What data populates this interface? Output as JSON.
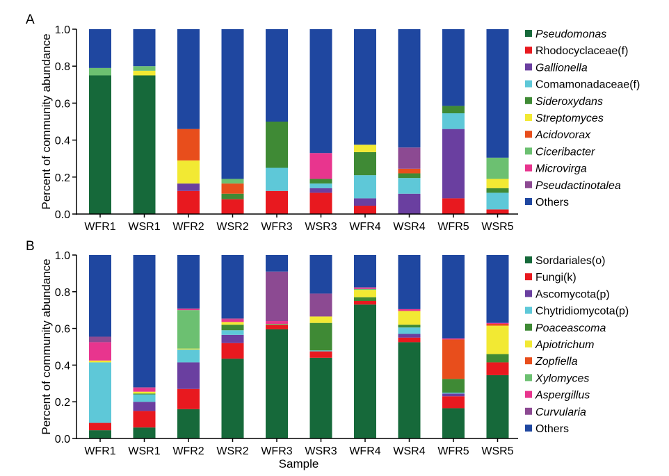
{
  "chart_data": [
    {
      "panel": "A",
      "type": "bar",
      "stacked": true,
      "ylabel": "Percent of community abundance",
      "xlabel": "",
      "ylim": [
        0,
        1.0
      ],
      "yticks": [
        "0.0",
        "0.2",
        "0.4",
        "0.6",
        "0.8",
        "1.0"
      ],
      "categories": [
        "WFR1",
        "WSR1",
        "WFR2",
        "WSR2",
        "WFR3",
        "WSR3",
        "WFR4",
        "WSR4",
        "WFR5",
        "WSR5"
      ],
      "legend_position": "right",
      "series": [
        {
          "name": "Pseudomonas",
          "italic": true,
          "color": "#16693a",
          "values": [
            0.75,
            0.75,
            0,
            0,
            0,
            0,
            0,
            0,
            0,
            0
          ]
        },
        {
          "name": "Rhodocyclaceae(f)",
          "italic": false,
          "color": "#e8191f",
          "values": [
            0,
            0,
            0.125,
            0.08,
            0.125,
            0.115,
            0.045,
            0,
            0.085,
            0.025
          ]
        },
        {
          "name": "Gallionella",
          "italic": true,
          "color": "#6a3fa0",
          "values": [
            0,
            0,
            0.04,
            0,
            0,
            0.025,
            0.04,
            0.11,
            0.375,
            0
          ]
        },
        {
          "name": "Comamonadaceae(f)",
          "italic": false,
          "color": "#5ec8d8",
          "values": [
            0,
            0,
            0,
            0,
            0.125,
            0.025,
            0.125,
            0.085,
            0.085,
            0.09
          ]
        },
        {
          "name": "Sideroxydans",
          "italic": true,
          "color": "#3f8a35",
          "values": [
            0,
            0,
            0,
            0.03,
            0.25,
            0.025,
            0.125,
            0.025,
            0.04,
            0.025
          ]
        },
        {
          "name": "Streptomyces",
          "italic": true,
          "color": "#f2e933",
          "values": [
            0,
            0.025,
            0.125,
            0,
            0,
            0,
            0.04,
            0,
            0,
            0.05
          ]
        },
        {
          "name": "Acidovorax",
          "italic": true,
          "color": "#e84e1c",
          "values": [
            0,
            0,
            0.17,
            0.055,
            0,
            0,
            0,
            0.025,
            0,
            0
          ]
        },
        {
          "name": "Ciceribacter",
          "italic": true,
          "color": "#6cc071",
          "values": [
            0.04,
            0.025,
            0,
            0.025,
            0,
            0,
            0,
            0,
            0,
            0.115
          ]
        },
        {
          "name": "Microvirga",
          "italic": true,
          "color": "#e8358e",
          "values": [
            0,
            0,
            0,
            0,
            0,
            0.14,
            0,
            0,
            0,
            0
          ]
        },
        {
          "name": "Pseudactinotalea",
          "italic": true,
          "color": "#8c4a92",
          "values": [
            0,
            0,
            0,
            0,
            0,
            0,
            0,
            0.115,
            0,
            0
          ]
        },
        {
          "name": "Others",
          "italic": false,
          "color": "#1f47a0",
          "values": [
            0.21,
            0.2,
            0.54,
            0.81,
            0.5,
            0.67,
            0.625,
            0.64,
            0.415,
            0.695
          ]
        }
      ]
    },
    {
      "panel": "B",
      "type": "bar",
      "stacked": true,
      "ylabel": "Percent of community abundance",
      "xlabel": "Sample",
      "ylim": [
        0,
        1.0
      ],
      "yticks": [
        "0.0",
        "0.2",
        "0.4",
        "0.6",
        "0.8",
        "1.0"
      ],
      "categories": [
        "WFR1",
        "WSR1",
        "WFR2",
        "WSR2",
        "WFR3",
        "WSR3",
        "WFR4",
        "WSR4",
        "WFR5",
        "WSR5"
      ],
      "legend_position": "right",
      "series": [
        {
          "name": "Sordariales(o)",
          "italic": false,
          "color": "#16693a",
          "values": [
            0.045,
            0.06,
            0.16,
            0.435,
            0.595,
            0.44,
            0.73,
            0.525,
            0.165,
            0.345
          ]
        },
        {
          "name": "Fungi(k)",
          "italic": false,
          "color": "#e8191f",
          "values": [
            0.04,
            0.09,
            0.11,
            0.085,
            0.025,
            0.035,
            0.02,
            0.025,
            0.065,
            0.07
          ]
        },
        {
          "name": "Ascomycota(p)",
          "italic": false,
          "color": "#6a3fa0",
          "values": [
            0,
            0.05,
            0.145,
            0.045,
            0,
            0,
            0,
            0.02,
            0.015,
            0
          ]
        },
        {
          "name": "Chytridiomycota(p)",
          "italic": false,
          "color": "#5ec8d8",
          "values": [
            0.33,
            0.04,
            0.07,
            0.025,
            0,
            0.005,
            0,
            0.035,
            0.005,
            0
          ]
        },
        {
          "name": "Poaceascoma",
          "italic": true,
          "color": "#3f8a35",
          "values": [
            0,
            0.005,
            0,
            0.03,
            0,
            0.15,
            0.02,
            0.015,
            0.075,
            0.045
          ]
        },
        {
          "name": "Apiotrichum",
          "italic": true,
          "color": "#f2e933",
          "values": [
            0.01,
            0.01,
            0.005,
            0.015,
            0,
            0.035,
            0.04,
            0.075,
            0,
            0.155
          ]
        },
        {
          "name": "Zopfiella",
          "italic": true,
          "color": "#e84e1c",
          "values": [
            0,
            0,
            0,
            0,
            0,
            0,
            0,
            0,
            0.215,
            0.01
          ]
        },
        {
          "name": "Xylomyces",
          "italic": true,
          "color": "#6cc071",
          "values": [
            0,
            0,
            0.21,
            0,
            0.005,
            0,
            0.005,
            0,
            0,
            0
          ]
        },
        {
          "name": "Aspergillus",
          "italic": true,
          "color": "#e8358e",
          "values": [
            0.1,
            0.02,
            0.005,
            0.015,
            0.015,
            0,
            0.005,
            0.01,
            0.005,
            0.005
          ]
        },
        {
          "name": "Curvularia",
          "italic": true,
          "color": "#8c4a92",
          "values": [
            0.03,
            0.005,
            0.005,
            0.005,
            0.27,
            0.125,
            0.005,
            0,
            0,
            0
          ]
        },
        {
          "name": "Others",
          "italic": false,
          "color": "#1f47a0",
          "values": [
            0.445,
            0.72,
            0.29,
            0.345,
            0.09,
            0.21,
            0.175,
            0.295,
            0.455,
            0.37
          ]
        }
      ]
    }
  ]
}
